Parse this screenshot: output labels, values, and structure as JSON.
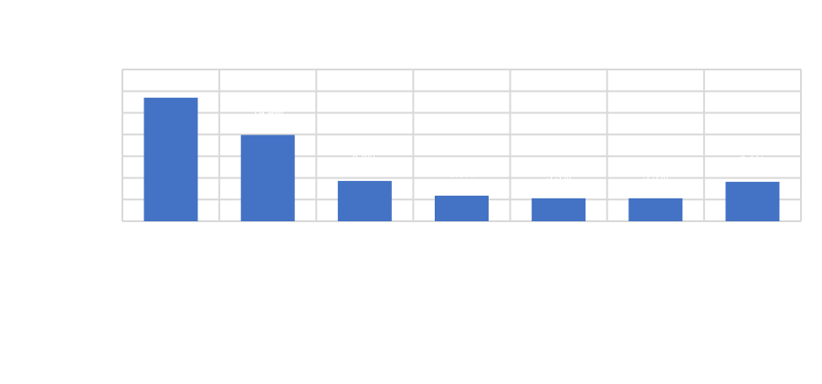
{
  "chart_data": {
    "type": "bar",
    "title": "",
    "xlabel": "",
    "ylabel": "",
    "categories": [
      "",
      "",
      "",
      "",
      "",
      "",
      ""
    ],
    "values": [
      28.5,
      19.9,
      9.3,
      5.9,
      5.3,
      5.3,
      9.1
    ],
    "data_labels": [
      "28.5%",
      "19.9%",
      "9.3%",
      "5.9%",
      "5.3%",
      "5.3%",
      "9.1%"
    ],
    "ylim": [
      0,
      35
    ],
    "ytick_step": 5,
    "grid": true,
    "bar_color": "#4472C4",
    "grid_color": "#D9D9D9",
    "label_color": "#FFFFFF"
  }
}
